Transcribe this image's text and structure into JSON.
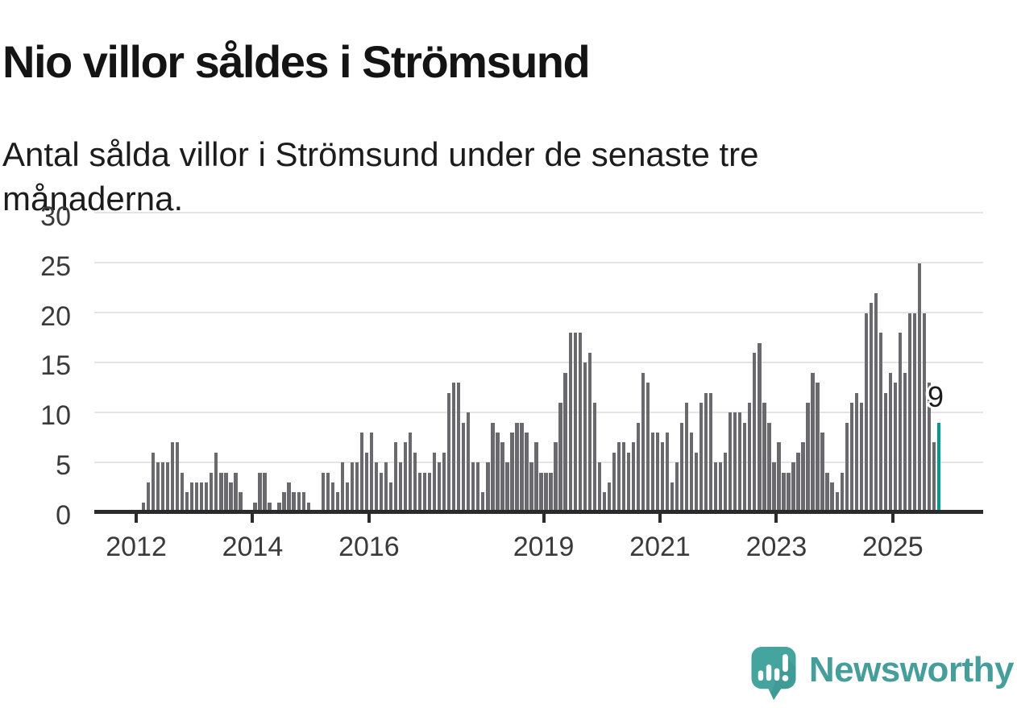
{
  "header": {
    "title": "Nio villor såldes i Strömsund",
    "subtitle": "Antal sålda villor i Strömsund under de senaste tre månaderna."
  },
  "footer": {
    "brand": "Newsworthy",
    "brand_color": "#459e9a",
    "logo_icon": "speech-bubble-bar-chart-icon",
    "logo_color": "#46a49e"
  },
  "chart_data": {
    "type": "bar",
    "title": "Nio villor såldes i Strömsund",
    "subtitle": "Antal sålda villor i Strömsund under de senaste tre månaderna.",
    "unit": "sålda villor (rullande 3 månader)",
    "x_start": "2012-01",
    "frequency": "monthly",
    "values": [
      0,
      1,
      3,
      6,
      5,
      5,
      5,
      7,
      7,
      4,
      2,
      3,
      3,
      3,
      3,
      4,
      6,
      4,
      4,
      3,
      4,
      2,
      0,
      0,
      1,
      4,
      4,
      1,
      0,
      1,
      2,
      3,
      2,
      2,
      2,
      1,
      0,
      0,
      4,
      4,
      3,
      2,
      5,
      3,
      5,
      5,
      8,
      6,
      8,
      5,
      4,
      5,
      3,
      7,
      5,
      7,
      8,
      6,
      4,
      4,
      4,
      6,
      5,
      6,
      12,
      13,
      13,
      9,
      10,
      5,
      5,
      2,
      5,
      9,
      8,
      7,
      5,
      8,
      9,
      9,
      8,
      5,
      7,
      4,
      4,
      4,
      7,
      11,
      14,
      18,
      18,
      18,
      15,
      16,
      11,
      5,
      2,
      3,
      6,
      7,
      7,
      6,
      7,
      9,
      14,
      13,
      8,
      8,
      7,
      8,
      3,
      5,
      9,
      11,
      8,
      6,
      11,
      12,
      12,
      5,
      5,
      6,
      10,
      10,
      10,
      9,
      11,
      16,
      17,
      11,
      9,
      5,
      7,
      4,
      4,
      5,
      6,
      7,
      11,
      14,
      13,
      8,
      4,
      3,
      2,
      4,
      9,
      11,
      12,
      11,
      20,
      21,
      22,
      18,
      12,
      14,
      13,
      18,
      14,
      20,
      20,
      25,
      20,
      13,
      7,
      9
    ],
    "highlight_index": 165,
    "highlight_value_label": "9",
    "bar_color": "#6a696d",
    "highlight_color": "#009a93",
    "xlabel": "",
    "ylabel": "",
    "xtick_years": [
      2012,
      2014,
      2016,
      2019,
      2021,
      2023,
      2025
    ],
    "yticks": [
      0,
      5,
      10,
      15,
      20,
      25,
      30
    ],
    "ylim": [
      0,
      30
    ],
    "grid": true,
    "gridline_color": "#e4e4e4",
    "axis_color": "#2b2b2b",
    "tick_label_color": "#3a3a3a",
    "legend": "none"
  }
}
